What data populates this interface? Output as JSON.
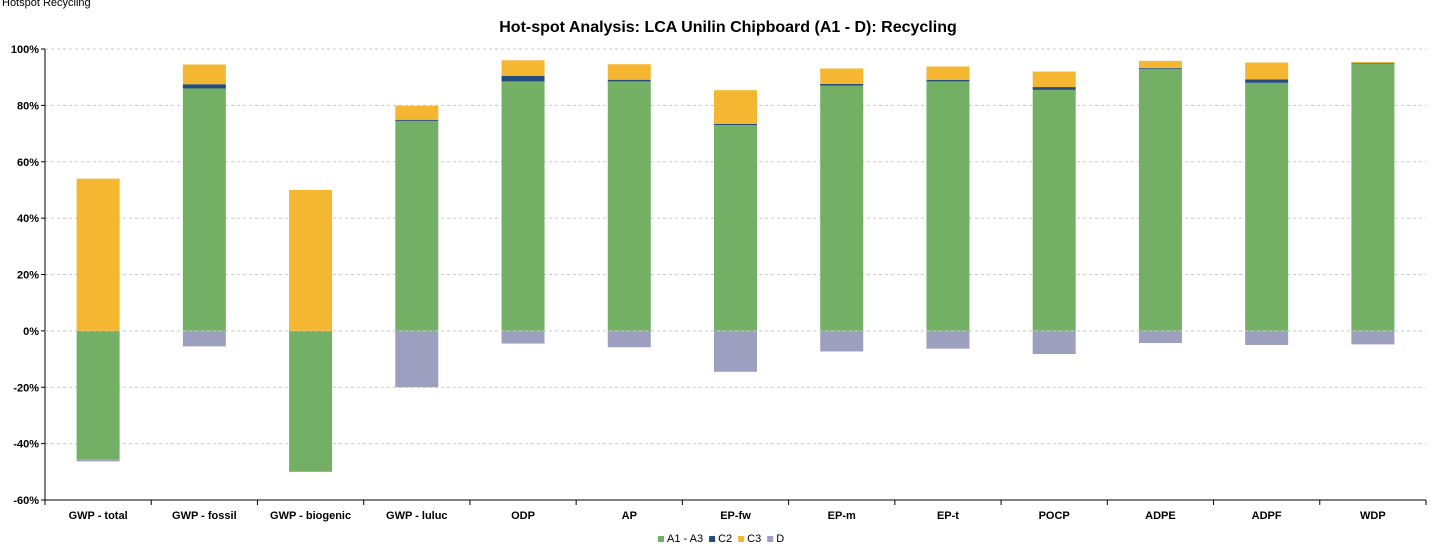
{
  "chart_data": {
    "type": "bar",
    "stacked": true,
    "title": "Hot-spot Analysis: LCA Unilin Chipboard (A1 - D): Recycling",
    "categories": [
      "GWP - total",
      "GWP - fossil",
      "GWP - biogenic",
      "GWP - luluc",
      "ODP",
      "AP",
      "EP-fw",
      "EP-m",
      "EP-t",
      "POCP",
      "ADPE",
      "ADPF",
      "WDP"
    ],
    "series": [
      {
        "name": "A1 - A3",
        "color": "#73b065",
        "values": [
          -45.5,
          86.0,
          -50.0,
          74.5,
          88.5,
          88.5,
          73.0,
          87.0,
          88.5,
          85.5,
          93.0,
          88.0,
          95.0
        ]
      },
      {
        "name": "C2",
        "color": "#264c7e",
        "values": [
          0.0,
          1.5,
          0.0,
          0.4,
          2.0,
          0.6,
          0.4,
          0.6,
          0.5,
          1.0,
          0.3,
          1.2,
          0.1
        ]
      },
      {
        "name": "C3",
        "color": "#f5b731",
        "values": [
          54.0,
          7.0,
          50.0,
          5.0,
          5.5,
          5.5,
          12.0,
          5.5,
          4.8,
          5.5,
          2.5,
          6.0,
          0.3
        ]
      },
      {
        "name": "D",
        "color": "#9c9fbd",
        "values": [
          -0.8,
          -5.5,
          0.0,
          -20.0,
          -4.5,
          -5.8,
          -14.5,
          -7.3,
          -6.3,
          -8.2,
          -4.3,
          -5.0,
          -4.8
        ]
      }
    ],
    "y_ticks": [
      "-60%",
      "-40%",
      "-20%",
      "0%",
      "20%",
      "40%",
      "60%",
      "80%",
      "100%"
    ],
    "ylim": [
      -60,
      100
    ],
    "xlabel": "",
    "ylabel": "",
    "grid": true,
    "legend_position": "bottom-center"
  },
  "header": {
    "cropped_caption": "Hotspot Recycling"
  }
}
